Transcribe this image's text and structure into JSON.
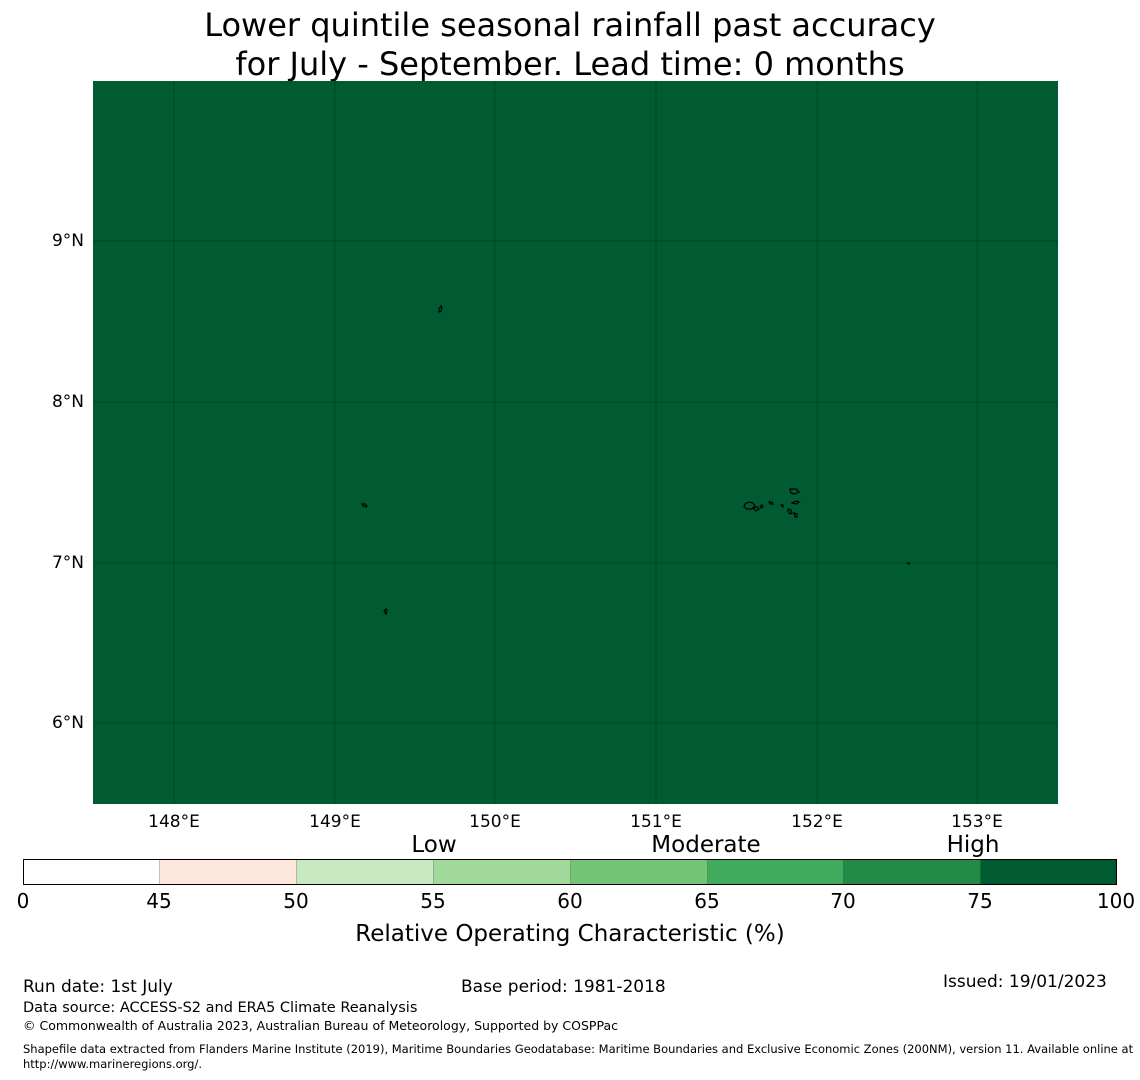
{
  "title": {
    "line1": "Lower quintile seasonal rainfall past accuracy",
    "line2": "for July - September. Lead time: 0 months"
  },
  "map": {
    "background_color": "#005a32",
    "lat_labels": [
      "9°N",
      "8°N",
      "7°N",
      "6°N"
    ],
    "lon_labels": [
      "148°E",
      "149°E",
      "150°E",
      "151°E",
      "152°E",
      "153°E"
    ],
    "features": [
      "small-island",
      "small-island",
      "small-island",
      "chuuk-lagoon-islands",
      "small-island"
    ]
  },
  "colorbar": {
    "category_labels": [
      "Low",
      "Moderate",
      "High"
    ],
    "ticks": [
      "0",
      "45",
      "50",
      "55",
      "60",
      "65",
      "70",
      "75",
      "100"
    ],
    "colors": [
      "#ffffff",
      "#fee8dd",
      "#c7e9c0",
      "#a1d99b",
      "#74c476",
      "#41ab5d",
      "#238b45",
      "#005a32"
    ],
    "label": "Relative Operating Characteristic (%)"
  },
  "footer": {
    "run_date": "Run date: 1st July",
    "base_period": "Base period: 1981-2018",
    "issued": "Issued: 19/01/2023",
    "data_source": "Data source: ACCESS-S2 and ERA5 Climate Reanalysis",
    "copyright": "© Commonwealth of Australia 2023, Australian Bureau of Meteorology, Supported by COSPPac",
    "shapefile": "Shapefile data extracted from Flanders Marine Institute (2019), Maritime Boundaries Geodatabase: Maritime Boundaries and Exclusive Economic Zones (200NM), version 11. Available online at http://www.marineregions.org/."
  }
}
